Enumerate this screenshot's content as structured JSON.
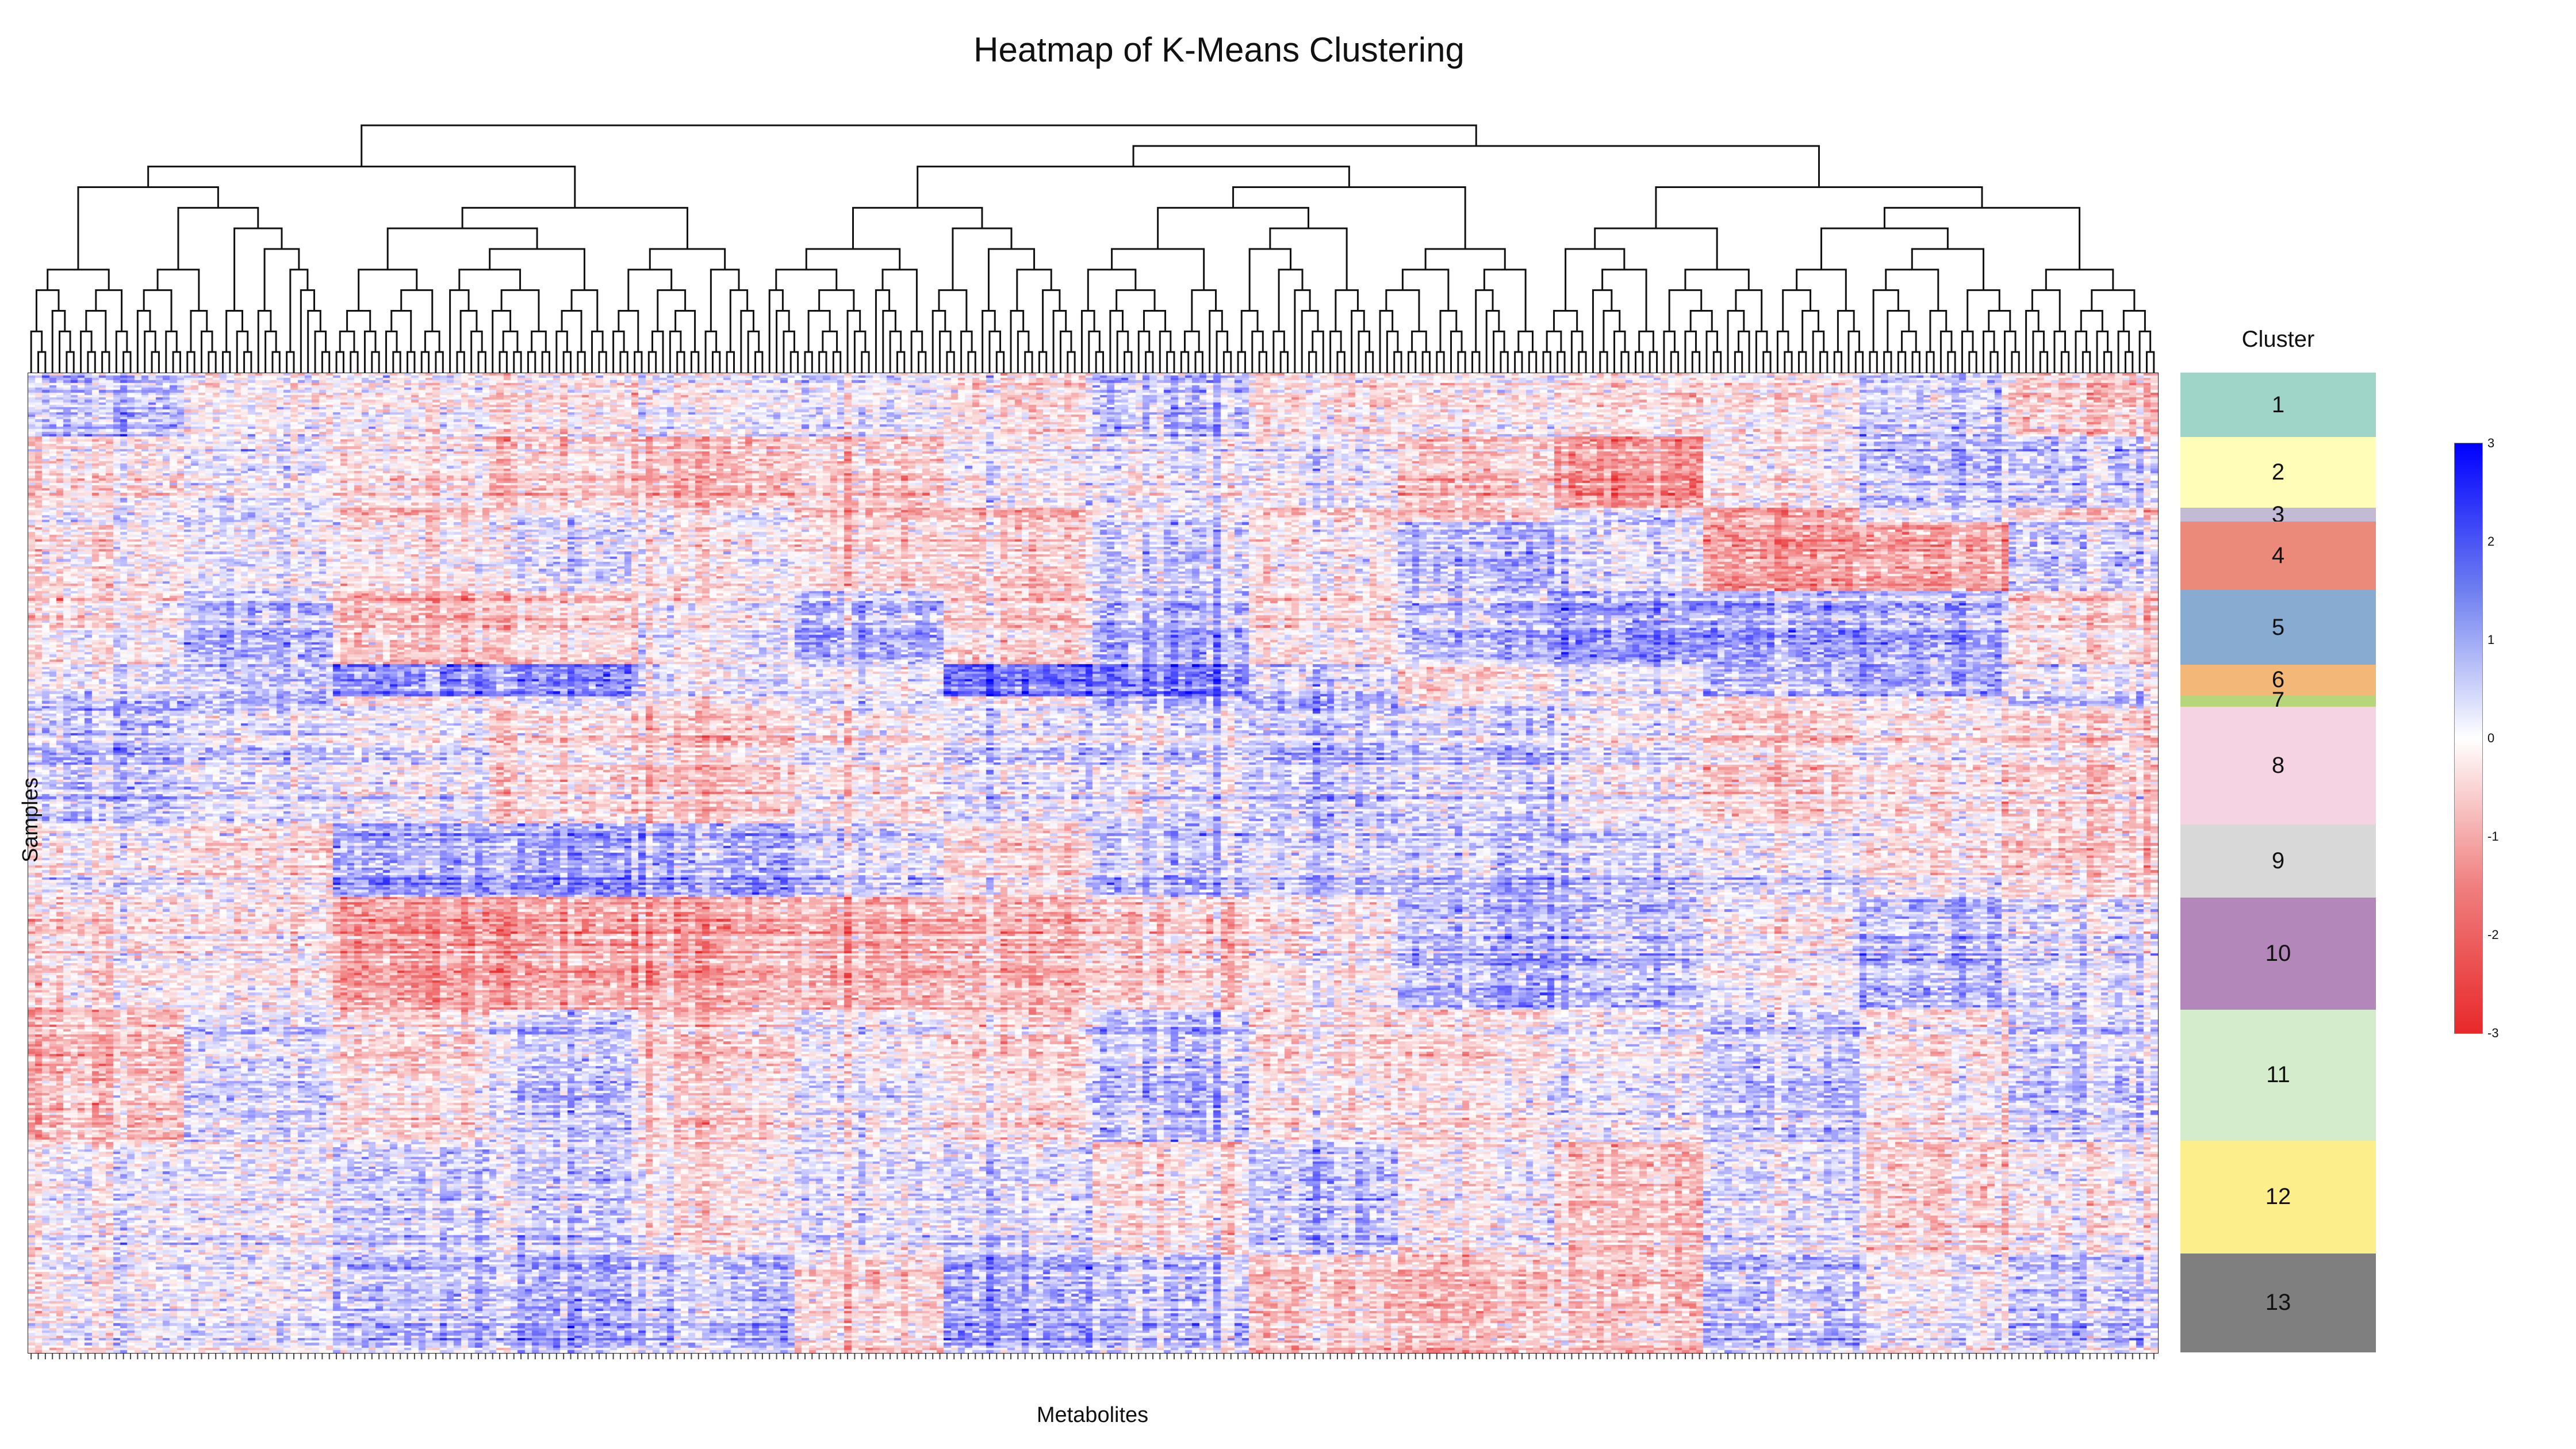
{
  "chart_data": {
    "type": "heatmap",
    "title": "Heatmap of K-Means Clustering",
    "xlabel": "Metabolites",
    "ylabel": "Samples",
    "color_scale": {
      "min": -3,
      "max": 3,
      "low_color": "#e8282a",
      "mid_color": "#ffffff",
      "high_color": "#0000ff",
      "ticks": [
        "3",
        "2",
        "1",
        "0",
        "-1",
        "-2",
        "-3"
      ]
    },
    "cluster_legend_title": "Cluster",
    "clusters": [
      {
        "label": "1",
        "color": "#9fd5c9",
        "fraction": 0.066
      },
      {
        "label": "2",
        "color": "#fffdb8",
        "fraction": 0.072
      },
      {
        "label": "3",
        "color": "#c3bbd6",
        "fraction": 0.014
      },
      {
        "label": "4",
        "color": "#eb8a7b",
        "fraction": 0.07
      },
      {
        "label": "5",
        "color": "#88acd1",
        "fraction": 0.076
      },
      {
        "label": "6",
        "color": "#f3b878",
        "fraction": 0.031
      },
      {
        "label": "7",
        "color": "#b7d57a",
        "fraction": 0.012
      },
      {
        "label": "8",
        "color": "#f6d3e2",
        "fraction": 0.12
      },
      {
        "label": "9",
        "color": "#d8d8d8",
        "fraction": 0.075
      },
      {
        "label": "10",
        "color": "#b487bb",
        "fraction": 0.114
      },
      {
        "label": "11",
        "color": "#d4ebcc",
        "fraction": 0.134
      },
      {
        "label": "12",
        "color": "#fdee8c",
        "fraction": 0.115
      },
      {
        "label": "13",
        "color": "#7f7f7f",
        "fraction": 0.101
      }
    ],
    "column_count": 300,
    "row_count": 400,
    "grid": false,
    "legend_placement": "right"
  }
}
